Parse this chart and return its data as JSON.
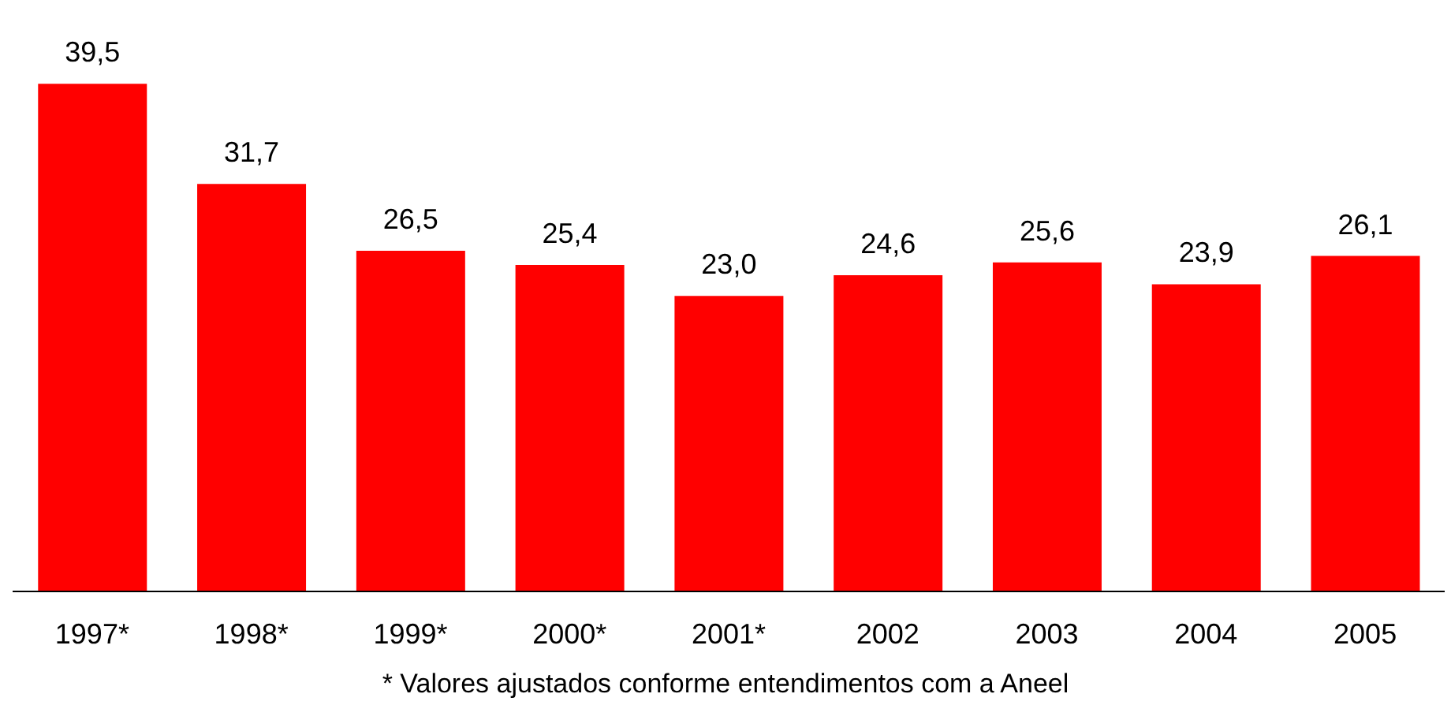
{
  "chart_data": {
    "type": "bar",
    "categories": [
      "1997*",
      "1998*",
      "1999*",
      "2000*",
      "2001*",
      "2002",
      "2003",
      "2004",
      "2005"
    ],
    "values": [
      39.5,
      31.7,
      26.5,
      25.4,
      23.0,
      24.6,
      25.6,
      23.9,
      26.1
    ],
    "value_labels": [
      "39,5",
      "31,7",
      "26,5",
      "25,4",
      "23,0",
      "24,6",
      "25,6",
      "23,9",
      "26,1"
    ],
    "color": "#ff0000",
    "annotations": [
      "* Valores ajustados conforme entendimentos com a Aneel"
    ]
  }
}
